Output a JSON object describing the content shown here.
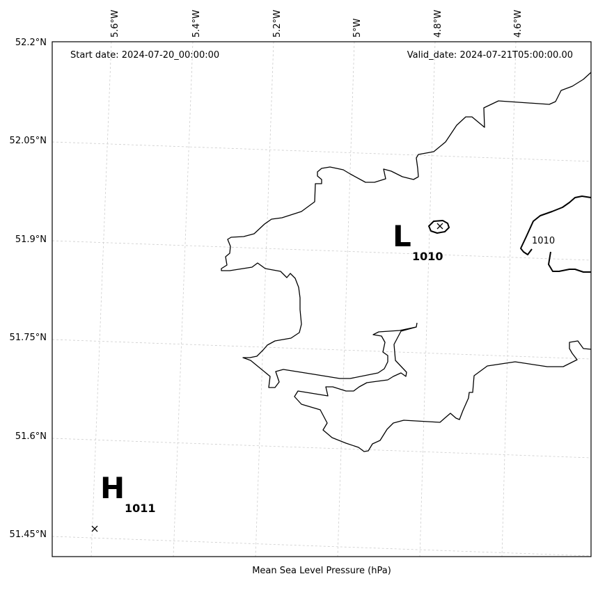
{
  "map": {
    "start_date": "Start date: 2024-07-20_00:00:00",
    "valid_date": "Valid_date: 2024-07-21T05:00:00.00",
    "xlabel": "Mean Sea Level Pressure (hPa)",
    "lon_ticks": [
      "5.6°W",
      "5.4°W",
      "5.2°W",
      "5°W",
      "4.8°W",
      "4.6°W"
    ],
    "lat_ticks": [
      "52.2°N",
      "52.05°N",
      "51.9°N",
      "51.75°N",
      "51.6°N",
      "51.45°N"
    ],
    "lows": [
      {
        "symbol": "L",
        "value": "1010"
      }
    ],
    "highs": [
      {
        "symbol": "H",
        "value": "1011"
      }
    ],
    "contour_labels": [
      "1010"
    ],
    "colors": {
      "coastline": "#000000",
      "gridlines": "#cccccc",
      "isobar": "#000000"
    }
  }
}
